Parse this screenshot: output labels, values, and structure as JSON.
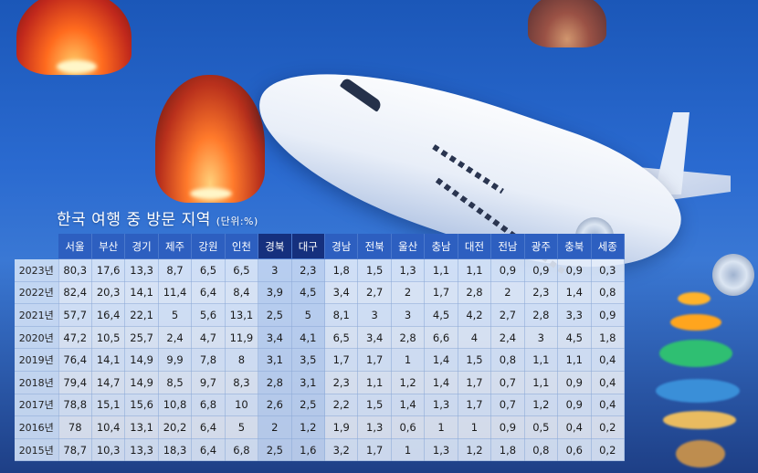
{
  "chart_data": {
    "type": "table",
    "title": "한국 여행 중 방문 지역",
    "unit": "(단위:%)",
    "columns": [
      "서울",
      "부산",
      "경기",
      "제주",
      "강원",
      "인천",
      "경북",
      "대구",
      "경남",
      "전북",
      "울산",
      "충남",
      "대전",
      "전남",
      "광주",
      "충북",
      "세종"
    ],
    "highlight_columns": [
      "경북",
      "대구"
    ],
    "rows": [
      {
        "year": "2023년",
        "values": [
          "80,3",
          "17,6",
          "13,3",
          "8,7",
          "6,5",
          "6,5",
          "3",
          "2,3",
          "1,8",
          "1,5",
          "1,3",
          "1,1",
          "1,1",
          "0,9",
          "0,9",
          "0,9",
          "0,3"
        ]
      },
      {
        "year": "2022년",
        "values": [
          "82,4",
          "20,3",
          "14,1",
          "11,4",
          "6,4",
          "8,4",
          "3,9",
          "4,5",
          "3,4",
          "2,7",
          "2",
          "1,7",
          "2,8",
          "2",
          "2,3",
          "1,4",
          "0,8"
        ]
      },
      {
        "year": "2021년",
        "values": [
          "57,7",
          "16,4",
          "22,1",
          "5",
          "5,6",
          "13,1",
          "2,5",
          "5",
          "8,1",
          "3",
          "3",
          "4,5",
          "4,2",
          "2,7",
          "2,8",
          "3,3",
          "0,9"
        ]
      },
      {
        "year": "2020년",
        "values": [
          "47,2",
          "10,5",
          "25,7",
          "2,4",
          "4,7",
          "11,9",
          "3,4",
          "4,1",
          "6,5",
          "3,4",
          "2,8",
          "6,6",
          "4",
          "2,4",
          "3",
          "4,5",
          "1,8"
        ]
      },
      {
        "year": "2019년",
        "values": [
          "76,4",
          "14,1",
          "14,9",
          "9,9",
          "7,8",
          "8",
          "3,1",
          "3,5",
          "1,7",
          "1,7",
          "1",
          "1,4",
          "1,5",
          "0,8",
          "1,1",
          "1,1",
          "0,4"
        ]
      },
      {
        "year": "2018년",
        "values": [
          "79,4",
          "14,7",
          "14,9",
          "8,5",
          "9,7",
          "8,3",
          "2,8",
          "3,1",
          "2,3",
          "1,1",
          "1,2",
          "1,4",
          "1,7",
          "0,7",
          "1,1",
          "0,9",
          "0,4"
        ]
      },
      {
        "year": "2017년",
        "values": [
          "78,8",
          "15,1",
          "15,6",
          "10,8",
          "6,8",
          "10",
          "2,6",
          "2,5",
          "2,2",
          "1,5",
          "1,4",
          "1,3",
          "1,7",
          "0,7",
          "1,2",
          "0,9",
          "0,4"
        ]
      },
      {
        "year": "2016년",
        "values": [
          "78",
          "10,4",
          "13,1",
          "20,2",
          "6,4",
          "5",
          "2",
          "1,2",
          "1,9",
          "1,3",
          "0,6",
          "1",
          "1",
          "0,9",
          "0,5",
          "0,4",
          "0,2"
        ]
      },
      {
        "year": "2015년",
        "values": [
          "78,7",
          "10,3",
          "13,3",
          "18,3",
          "6,4",
          "6,8",
          "2,5",
          "1,6",
          "3,2",
          "1,7",
          "1",
          "1,3",
          "1,2",
          "1,8",
          "0,8",
          "0,6",
          "0,2"
        ]
      }
    ]
  },
  "colors": {
    "header": "#2d5fc0",
    "header_highlight": "#15307e"
  }
}
